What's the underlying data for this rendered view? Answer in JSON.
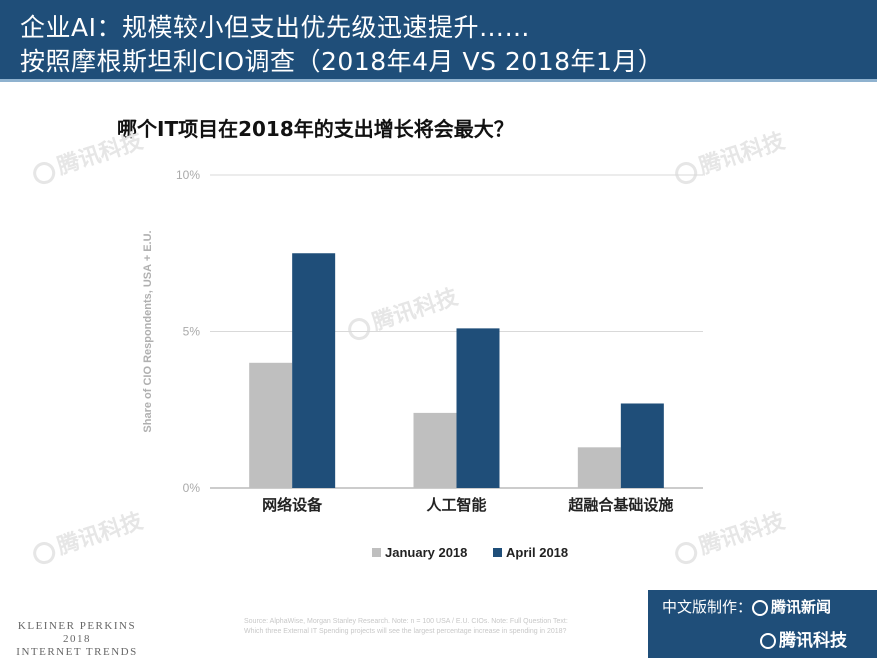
{
  "header": {
    "line1": "企业AI：规模较小但支出优先级迅速提升……",
    "line2": "按照摩根斯坦利CIO调查（2018年4月 VS 2018年1月）"
  },
  "watermark": "腾讯科技",
  "chart_data": {
    "type": "bar",
    "title": "哪个IT项目在2018年的支出增长将会最大？",
    "categories": [
      "网络设备",
      "人工智能",
      "超融合基础设施"
    ],
    "series": [
      {
        "name": "January 2018",
        "values": [
          4.0,
          2.4,
          1.3
        ],
        "color": "#bfbfbf"
      },
      {
        "name": "April 2018",
        "values": [
          7.5,
          5.1,
          2.7
        ],
        "color": "#1f4e79"
      }
    ],
    "ylabel": "Share of CIO Respondents, USA + E.U.",
    "yticks": [
      "0%",
      "5%",
      "10%"
    ],
    "ylim": [
      0,
      10
    ],
    "grid": true,
    "legend_position": "bottom-center"
  },
  "footer": {
    "kp_line1": "KLEINER PERKINS",
    "kp_line2": "2018",
    "kp_line3": "INTERNET TRENDS",
    "source_line1": "Source: AlphaWise, Morgan Stanley Research.  Note: n = 100 USA / E.U. CIOs.  Note: Full Question Text:",
    "source_line2": "Which three External IT Spending projects will see the largest percentage increase in spending in 2018?",
    "brand_label": "中文版制作：",
    "brand_name1": "腾讯新闻",
    "brand_name2": "腾讯科技"
  }
}
